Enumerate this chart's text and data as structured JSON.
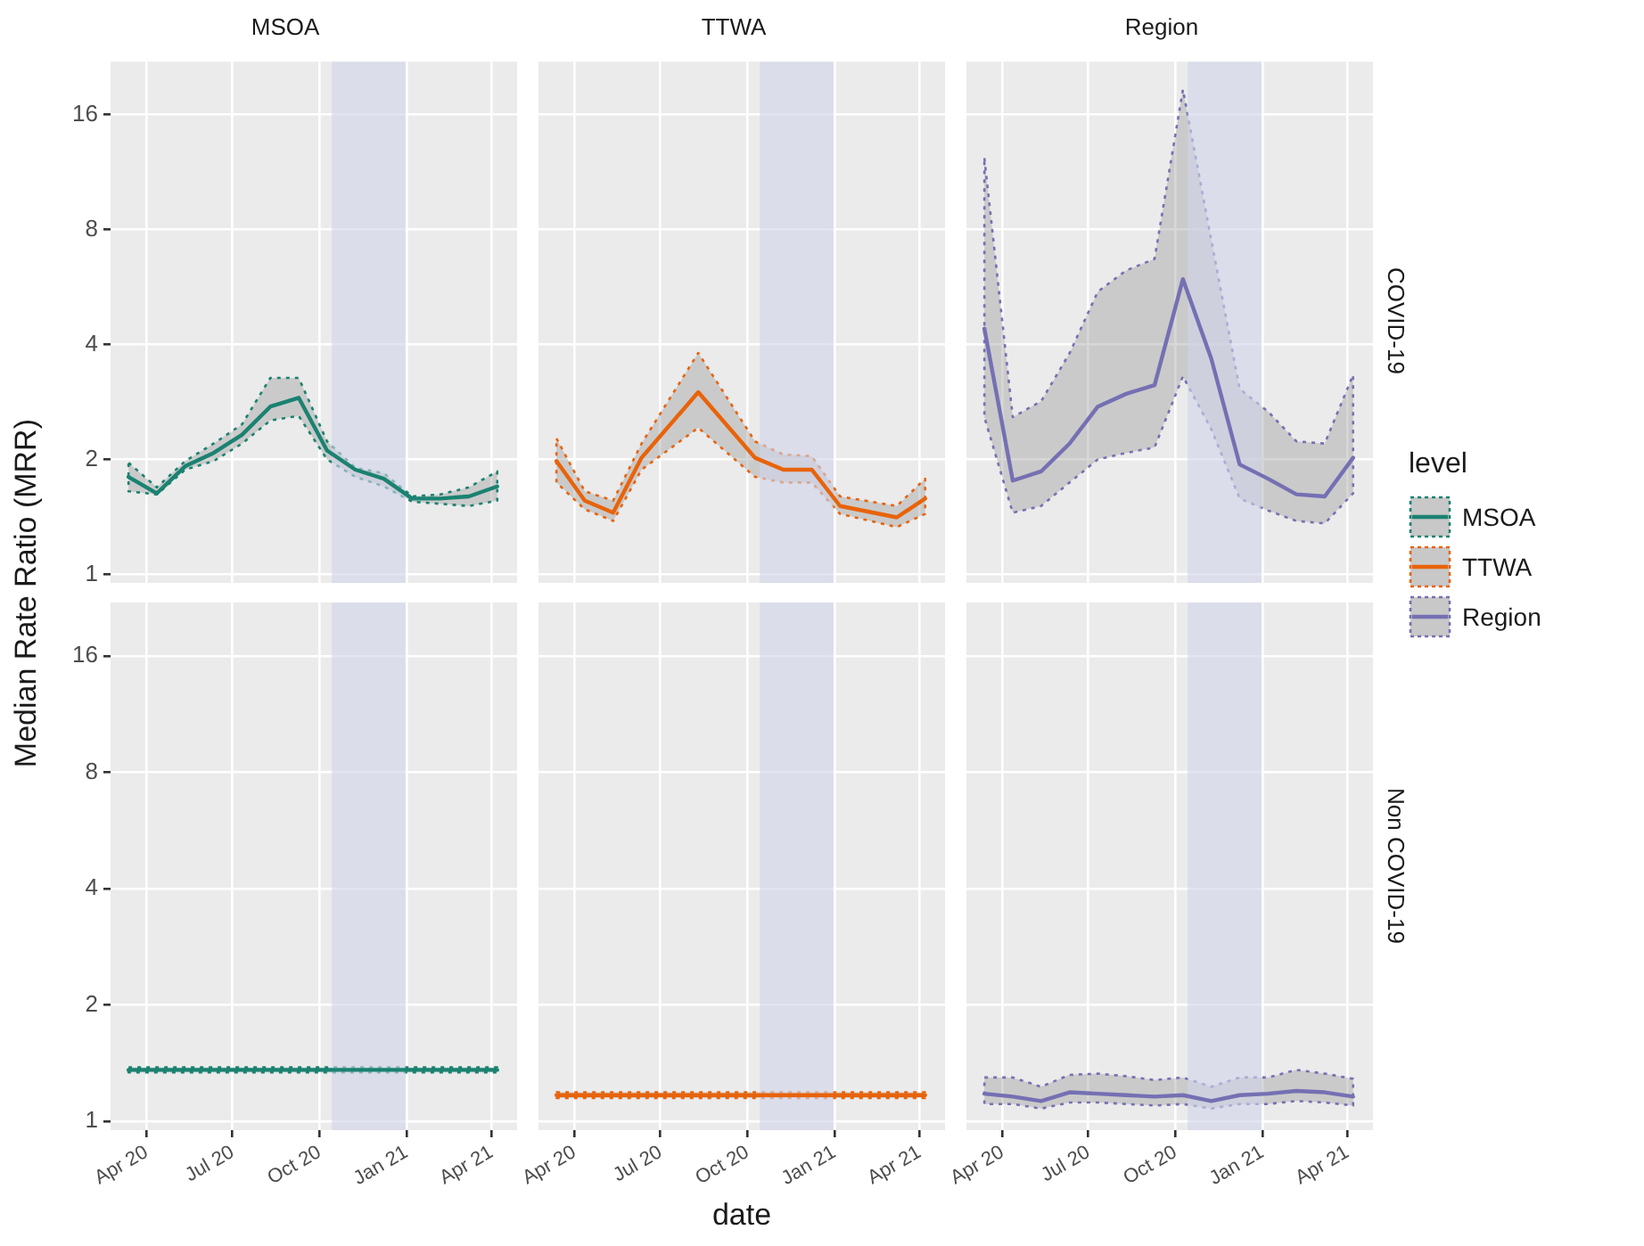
{
  "chart_data": [
    {
      "type": "line",
      "title": "MSOA",
      "ylabel": "Median Rate Ratio (MRR)",
      "legend": "right",
      "legend_title": "level",
      "grid": true,
      "log": "y",
      "tick_labels": "y",
      "xlim": [
        "2020-02-23",
        "2021-04-28"
      ],
      "xticks": [
        {
          "value": "2020-04-01",
          "label": null
        },
        {
          "value": "2020-07-01",
          "label": null
        },
        {
          "value": "2020-10-01",
          "label": null
        },
        {
          "value": "2021-01-01",
          "label": null
        },
        {
          "value": "2021-04-01",
          "label": null
        }
      ],
      "ylim": [
        0.95,
        22
      ],
      "yticks": [
        1,
        2,
        4,
        8,
        16
      ],
      "bands": [
        {
          "axis": "x",
          "from": "2020-10-14",
          "to": "2020-12-31",
          "color": "#d0d3ea"
        }
      ],
      "x": [
        "2020-03-13",
        "2020-04-12",
        "2020-05-12",
        "2020-06-11",
        "2020-07-11",
        "2020-08-10",
        "2020-09-09",
        "2020-10-09",
        "2020-11-08",
        "2020-12-08",
        "2021-01-07",
        "2021-02-06",
        "2021-03-08",
        "2021-04-07"
      ],
      "series": [
        {
          "name": "MSOA",
          "color": "#1a8271",
          "values": [
            1.8,
            1.63,
            1.92,
            2.08,
            2.32,
            2.75,
            2.9,
            2.11,
            1.88,
            1.78,
            1.58,
            1.58,
            1.6,
            1.7
          ],
          "upper": [
            1.96,
            1.69,
            1.98,
            2.2,
            2.47,
            3.27,
            3.27,
            2.23,
            1.9,
            1.84,
            1.6,
            1.62,
            1.69,
            1.86
          ],
          "lower": [
            1.65,
            1.62,
            1.88,
            1.98,
            2.2,
            2.53,
            2.6,
            2.0,
            1.8,
            1.7,
            1.55,
            1.53,
            1.51,
            1.56
          ]
        }
      ]
    },
    {
      "type": "line",
      "title": "TTWA",
      "legend": "right",
      "grid": true,
      "log": "y",
      "tick_labels": false,
      "xlim": [
        "2020-02-23",
        "2021-04-28"
      ],
      "xticks": [
        {
          "value": "2020-04-01",
          "label": null
        },
        {
          "value": "2020-07-01",
          "label": null
        },
        {
          "value": "2020-10-01",
          "label": null
        },
        {
          "value": "2021-01-01",
          "label": null
        },
        {
          "value": "2021-04-01",
          "label": null
        }
      ],
      "ylim": [
        0.95,
        22
      ],
      "yticks": [
        1,
        2,
        4,
        8,
        16
      ],
      "bands": [
        {
          "axis": "x",
          "from": "2020-10-14",
          "to": "2020-12-31",
          "color": "#d0d3ea"
        }
      ],
      "x": [
        "2020-03-13",
        "2020-04-12",
        "2020-05-12",
        "2020-06-11",
        "2020-08-10",
        "2020-10-09",
        "2020-11-08",
        "2020-12-08",
        "2021-01-07",
        "2021-03-08",
        "2021-04-07"
      ],
      "series": [
        {
          "name": "TTWA",
          "color": "#e8630a",
          "values": [
            1.98,
            1.56,
            1.45,
            2.02,
            3.0,
            2.02,
            1.88,
            1.88,
            1.51,
            1.41,
            1.58
          ],
          "upper": [
            2.27,
            1.65,
            1.56,
            2.2,
            3.8,
            2.23,
            2.06,
            2.04,
            1.6,
            1.51,
            1.78
          ],
          "lower": [
            1.74,
            1.48,
            1.38,
            1.88,
            2.42,
            1.8,
            1.74,
            1.74,
            1.44,
            1.33,
            1.44
          ]
        }
      ]
    },
    {
      "type": "line",
      "title": "Region",
      "y2label": "COVID-19",
      "legend": "right",
      "grid": true,
      "log": "y",
      "tick_labels": false,
      "xlim": [
        "2020-02-23",
        "2021-04-28"
      ],
      "xticks": [
        {
          "value": "2020-04-01",
          "label": null
        },
        {
          "value": "2020-07-01",
          "label": null
        },
        {
          "value": "2020-10-01",
          "label": null
        },
        {
          "value": "2021-01-01",
          "label": null
        },
        {
          "value": "2021-04-01",
          "label": null
        }
      ],
      "ylim": [
        0.95,
        22
      ],
      "yticks": [
        1,
        2,
        4,
        8,
        16
      ],
      "bands": [
        {
          "axis": "x",
          "from": "2020-10-14",
          "to": "2020-12-31",
          "color": "#d0d3ea"
        }
      ],
      "x": [
        "2020-03-13",
        "2020-04-12",
        "2020-05-12",
        "2020-06-11",
        "2020-07-11",
        "2020-08-10",
        "2020-09-09",
        "2020-10-09",
        "2020-11-08",
        "2020-12-08",
        "2021-01-07",
        "2021-02-06",
        "2021-03-08",
        "2021-04-07"
      ],
      "series": [
        {
          "name": "Region",
          "color": "#7570b3",
          "values": [
            4.4,
            1.76,
            1.86,
            2.2,
            2.75,
            2.97,
            3.13,
            5.93,
            3.67,
            1.94,
            1.78,
            1.62,
            1.6,
            2.02
          ],
          "upper": [
            12.3,
            2.58,
            2.84,
            3.79,
            5.5,
            6.25,
            6.7,
            18.6,
            7.5,
            3.06,
            2.67,
            2.23,
            2.2,
            3.33
          ],
          "lower": [
            2.58,
            1.45,
            1.51,
            1.74,
            2.0,
            2.08,
            2.15,
            3.3,
            2.4,
            1.58,
            1.47,
            1.38,
            1.36,
            1.63
          ]
        }
      ]
    },
    {
      "type": "line",
      "grid": true,
      "log": "y",
      "xlim": [
        "2020-02-23",
        "2021-04-28"
      ],
      "xticks": [
        {
          "value": "2020-04-01",
          "label": "Apr 20"
        },
        {
          "value": "2020-07-01",
          "label": "Jul 20"
        },
        {
          "value": "2020-10-01",
          "label": "Oct 20"
        },
        {
          "value": "2021-01-01",
          "label": "Jan 21"
        },
        {
          "value": "2021-04-01",
          "label": "Apr 21"
        }
      ],
      "ylim": [
        0.95,
        22
      ],
      "yticks": [
        1,
        2,
        4,
        8,
        16
      ],
      "bands": [
        {
          "axis": "x",
          "from": "2020-10-14",
          "to": "2020-12-31",
          "color": "#d0d3ea"
        }
      ],
      "x": [
        "2020-03-13",
        "2020-04-12",
        "2020-05-12",
        "2020-06-11",
        "2020-07-11",
        "2020-08-10",
        "2020-09-09",
        "2020-10-09",
        "2020-11-08",
        "2020-12-08",
        "2021-01-07",
        "2021-02-06",
        "2021-03-08",
        "2021-04-07"
      ],
      "series": [
        {
          "color": "#1a8271",
          "values": [
            1.36,
            1.36,
            1.36,
            1.36,
            1.36,
            1.36,
            1.36,
            1.36,
            1.36,
            1.36,
            1.36,
            1.36,
            1.36,
            1.36
          ],
          "upper": [
            1.38,
            1.38,
            1.38,
            1.38,
            1.38,
            1.38,
            1.38,
            1.38,
            1.38,
            1.38,
            1.38,
            1.38,
            1.38,
            1.38
          ],
          "lower": [
            1.34,
            1.34,
            1.34,
            1.34,
            1.34,
            1.34,
            1.34,
            1.34,
            1.34,
            1.34,
            1.34,
            1.34,
            1.34,
            1.34
          ]
        }
      ]
    },
    {
      "type": "line",
      "xlabel": "date",
      "grid": true,
      "log": "y",
      "tick_labels": "x",
      "xlim": [
        "2020-02-23",
        "2021-04-28"
      ],
      "xticks": [
        {
          "value": "2020-04-01",
          "label": "Apr 20"
        },
        {
          "value": "2020-07-01",
          "label": "Jul 20"
        },
        {
          "value": "2020-10-01",
          "label": "Oct 20"
        },
        {
          "value": "2021-01-01",
          "label": "Jan 21"
        },
        {
          "value": "2021-04-01",
          "label": "Apr 21"
        }
      ],
      "ylim": [
        0.95,
        22
      ],
      "yticks": [
        1,
        2,
        4,
        8,
        16
      ],
      "bands": [
        {
          "axis": "x",
          "from": "2020-10-14",
          "to": "2020-12-31",
          "color": "#d0d3ea"
        }
      ],
      "x": [
        "2020-03-13",
        "2020-04-12",
        "2020-05-12",
        "2020-06-11",
        "2020-07-11",
        "2020-08-10",
        "2020-09-09",
        "2020-10-09",
        "2020-11-08",
        "2020-12-08",
        "2021-01-07",
        "2021-02-06",
        "2021-03-08",
        "2021-04-07"
      ],
      "series": [
        {
          "color": "#e8630a",
          "values": [
            1.17,
            1.17,
            1.17,
            1.17,
            1.17,
            1.17,
            1.17,
            1.17,
            1.17,
            1.17,
            1.17,
            1.17,
            1.17,
            1.17
          ],
          "upper": [
            1.19,
            1.19,
            1.19,
            1.19,
            1.19,
            1.19,
            1.19,
            1.19,
            1.19,
            1.19,
            1.19,
            1.19,
            1.19,
            1.19
          ],
          "lower": [
            1.15,
            1.15,
            1.15,
            1.15,
            1.15,
            1.15,
            1.15,
            1.15,
            1.15,
            1.15,
            1.15,
            1.15,
            1.15,
            1.15
          ]
        }
      ]
    },
    {
      "type": "line",
      "y2label": "Non COVID-19",
      "grid": true,
      "log": "y",
      "tick_labels": "x",
      "xlim": [
        "2020-02-23",
        "2021-04-28"
      ],
      "xticks": [
        {
          "value": "2020-04-01",
          "label": "Apr 20"
        },
        {
          "value": "2020-07-01",
          "label": "Jul 20"
        },
        {
          "value": "2020-10-01",
          "label": "Oct 20"
        },
        {
          "value": "2021-01-01",
          "label": "Jan 21"
        },
        {
          "value": "2021-04-01",
          "label": "Apr 21"
        }
      ],
      "ylim": [
        0.95,
        22
      ],
      "yticks": [
        1,
        2,
        4,
        8,
        16
      ],
      "bands": [
        {
          "axis": "x",
          "from": "2020-10-14",
          "to": "2020-12-31",
          "color": "#d0d3ea"
        }
      ],
      "x": [
        "2020-03-13",
        "2020-04-12",
        "2020-05-12",
        "2020-06-11",
        "2020-07-11",
        "2020-08-10",
        "2020-09-09",
        "2020-10-09",
        "2020-11-08",
        "2020-12-08",
        "2021-01-07",
        "2021-02-06",
        "2021-03-08",
        "2021-04-07"
      ],
      "series": [
        {
          "color": "#7570b3",
          "values": [
            1.18,
            1.16,
            1.13,
            1.19,
            1.18,
            1.17,
            1.16,
            1.17,
            1.13,
            1.17,
            1.18,
            1.2,
            1.19,
            1.16
          ],
          "upper": [
            1.3,
            1.3,
            1.23,
            1.32,
            1.33,
            1.31,
            1.28,
            1.3,
            1.23,
            1.3,
            1.3,
            1.36,
            1.33,
            1.29
          ],
          "lower": [
            1.11,
            1.11,
            1.08,
            1.12,
            1.12,
            1.11,
            1.1,
            1.11,
            1.08,
            1.11,
            1.11,
            1.13,
            1.12,
            1.1
          ]
        }
      ]
    }
  ]
}
